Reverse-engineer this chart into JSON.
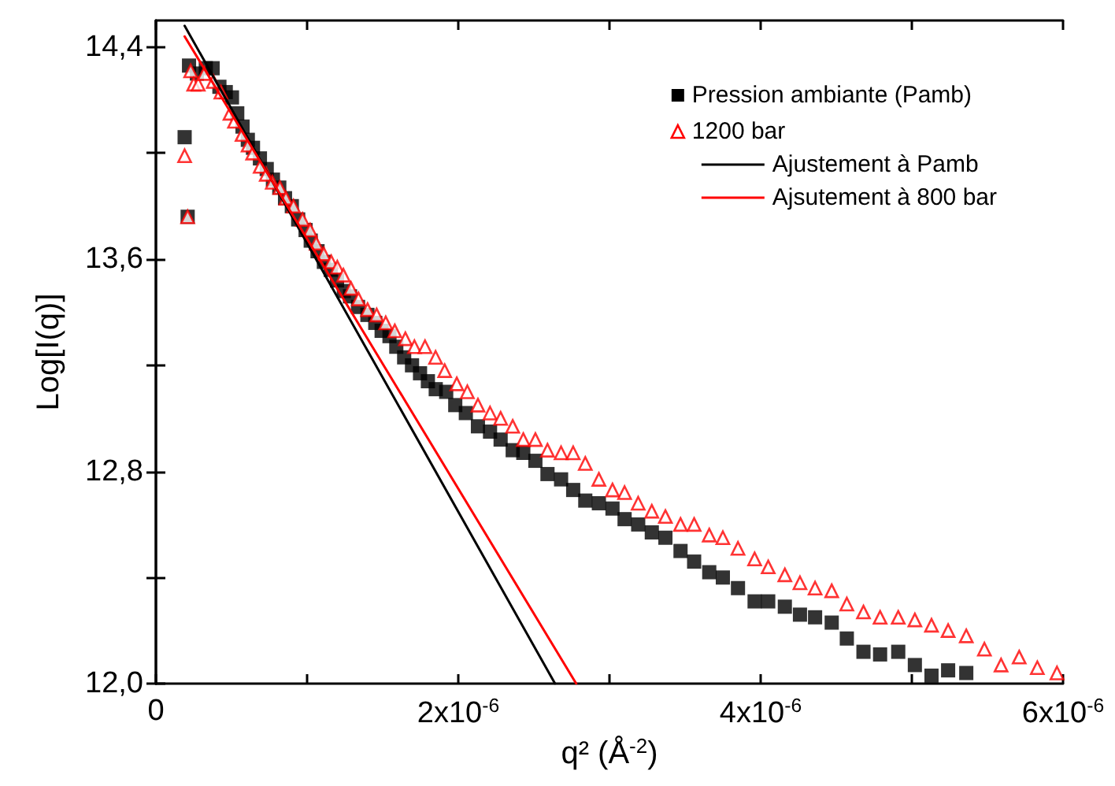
{
  "chart_data": {
    "type": "scatter",
    "xlabel": "q² (Å$^{-2}$)",
    "ylabel": "Log[I(q)]",
    "xlim": [
      0,
      6e-06
    ],
    "ylim": [
      12.0,
      14.5
    ],
    "xticks": [
      0,
      {
        "value": 1e-06,
        "label": null
      },
      {
        "value": 2e-06,
        "label": "2x10$^{-6}$"
      },
      {
        "value": 3e-06,
        "label": null
      },
      {
        "value": 4e-06,
        "label": "4x10$^{-6}$"
      },
      {
        "value": 5e-06,
        "label": null
      },
      {
        "value": 6e-06,
        "label": "6x10$^{-6}$"
      }
    ],
    "yticks": [
      {
        "value": 12.0,
        "label": "12,0"
      },
      {
        "value": 12.4,
        "label": null
      },
      {
        "value": 12.8,
        "label": "12,8"
      },
      {
        "value": 13.2,
        "label": null
      },
      {
        "value": 13.6,
        "label": "13,6"
      },
      {
        "value": 14.0,
        "label": null
      },
      {
        "value": 14.4,
        "label": "14,4"
      }
    ],
    "grid": false,
    "legend": "top right",
    "series": [
      {
        "name": "Pression ambiante (Pamb)",
        "marker": "square",
        "color": "#000000",
        "x": [
          1.9e-07,
          2.1e-07,
          2.19e-07,
          2.71e-07,
          3.3e-07,
          3.75e-07,
          4.2e-07,
          4.62e-07,
          5.03e-07,
          5.38e-07,
          5.73e-07,
          6.08e-07,
          6.42e-07,
          6.88e-07,
          7.33e-07,
          7.74e-07,
          8.16e-07,
          8.54e-07,
          8.99e-07,
          9.41e-07,
          9.9e-07,
          1.024e-06,
          1.069e-06,
          1.111e-06,
          1.156e-06,
          1.198e-06,
          1.243e-06,
          1.284e-06,
          1.337e-06,
          1.399e-06,
          1.451e-06,
          1.493e-06,
          1.545e-06,
          1.59e-06,
          1.642e-06,
          1.694e-06,
          1.747e-06,
          1.799e-06,
          1.851e-06,
          1.92e-06,
          1.98e-06,
          2.05e-06,
          2.13e-06,
          2.21e-06,
          2.28e-06,
          2.36e-06,
          2.43e-06,
          2.51e-06,
          2.59e-06,
          2.68e-06,
          2.76e-06,
          2.84e-06,
          2.93e-06,
          3.02e-06,
          3.1e-06,
          3.19e-06,
          3.28e-06,
          3.37e-06,
          3.47e-06,
          3.56e-06,
          3.66e-06,
          3.75e-06,
          3.85e-06,
          3.96e-06,
          4.05e-06,
          4.16e-06,
          4.26e-06,
          4.36e-06,
          4.47e-06,
          4.57e-06,
          4.68e-06,
          4.79e-06,
          4.91e-06,
          5.02e-06,
          5.13e-06,
          5.24e-06,
          5.36e-06
        ],
        "values": [
          14.06,
          13.76,
          14.33,
          14.3,
          14.32,
          14.32,
          14.25,
          14.23,
          14.21,
          14.15,
          14.1,
          14.05,
          14.02,
          13.98,
          13.94,
          13.9,
          13.87,
          13.83,
          13.8,
          13.75,
          13.71,
          13.67,
          13.63,
          13.59,
          13.56,
          13.52,
          13.48,
          13.46,
          13.42,
          13.39,
          13.36,
          13.33,
          13.31,
          13.27,
          13.23,
          13.2,
          13.17,
          13.14,
          13.11,
          13.1,
          13.05,
          13.02,
          12.97,
          12.95,
          12.92,
          12.88,
          12.87,
          12.84,
          12.79,
          12.77,
          12.73,
          12.69,
          12.68,
          12.66,
          12.62,
          12.6,
          12.57,
          12.55,
          12.5,
          12.46,
          12.42,
          12.4,
          12.36,
          12.31,
          12.31,
          12.29,
          12.26,
          12.25,
          12.23,
          12.17,
          12.12,
          12.11,
          12.12,
          12.07,
          12.03,
          12.05,
          12.04
        ]
      },
      {
        "name": "1200 bar",
        "marker": "triangle",
        "color": "#ff0000",
        "x": [
          1.9e-07,
          2.1e-07,
          2.3e-07,
          2.5e-07,
          2.8e-07,
          3.2e-07,
          3.8e-07,
          4.3e-07,
          4.9e-07,
          5.2e-07,
          5.7e-07,
          6.1e-07,
          6.4e-07,
          6.9e-07,
          7.3e-07,
          7.7e-07,
          8.2e-07,
          8.6e-07,
          9.1e-07,
          9.7e-07,
          1.02e-06,
          1.06e-06,
          1.11e-06,
          1.16e-06,
          1.2e-06,
          1.24e-06,
          1.29e-06,
          1.34e-06,
          1.4e-06,
          1.46e-06,
          1.52e-06,
          1.58e-06,
          1.65e-06,
          1.71e-06,
          1.78e-06,
          1.85e-06,
          1.91e-06,
          1.99e-06,
          2.06e-06,
          2.13e-06,
          2.21e-06,
          2.28e-06,
          2.36e-06,
          2.43e-06,
          2.51e-06,
          2.59e-06,
          2.68e-06,
          2.76e-06,
          2.84e-06,
          2.93e-06,
          3.02e-06,
          3.1e-06,
          3.19e-06,
          3.28e-06,
          3.37e-06,
          3.47e-06,
          3.56e-06,
          3.66e-06,
          3.75e-06,
          3.85e-06,
          3.96e-06,
          4.05e-06,
          4.16e-06,
          4.26e-06,
          4.36e-06,
          4.47e-06,
          4.57e-06,
          4.68e-06,
          4.79e-06,
          4.91e-06,
          5.02e-06,
          5.13e-06,
          5.24e-06,
          5.36e-06,
          5.48e-06,
          5.59e-06,
          5.71e-06,
          5.83e-06,
          5.96e-06
        ],
        "values": [
          13.99,
          13.76,
          14.31,
          14.26,
          14.26,
          14.3,
          14.27,
          14.23,
          14.15,
          14.12,
          14.07,
          14.03,
          14.0,
          13.95,
          13.92,
          13.89,
          13.87,
          13.83,
          13.8,
          13.75,
          13.71,
          13.66,
          13.62,
          13.59,
          13.57,
          13.54,
          13.49,
          13.45,
          13.41,
          13.39,
          13.36,
          13.33,
          13.3,
          13.27,
          13.27,
          13.23,
          13.18,
          13.13,
          13.1,
          13.05,
          13.02,
          13.0,
          12.97,
          12.92,
          12.92,
          12.88,
          12.87,
          12.87,
          12.83,
          12.77,
          12.73,
          12.72,
          12.68,
          12.65,
          12.63,
          12.6,
          12.6,
          12.56,
          12.55,
          12.51,
          12.47,
          12.44,
          12.41,
          12.38,
          12.36,
          12.35,
          12.3,
          12.27,
          12.25,
          12.25,
          12.24,
          12.22,
          12.2,
          12.18,
          12.13,
          12.07,
          12.1,
          12.06,
          12.04
        ]
      },
      {
        "name": "Ajustement à Pamb",
        "type": "line",
        "marker": "none",
        "color": "#000000",
        "x": [
          1.9e-07,
          2.64e-06
        ],
        "values": [
          14.48,
          12.0
        ]
      },
      {
        "name": "Ajsutement à 800 bar",
        "type": "line",
        "marker": "none",
        "color": "#ff0000",
        "x": [
          1.9e-07,
          2.78e-06
        ],
        "values": [
          14.44,
          12.0
        ]
      }
    ]
  }
}
